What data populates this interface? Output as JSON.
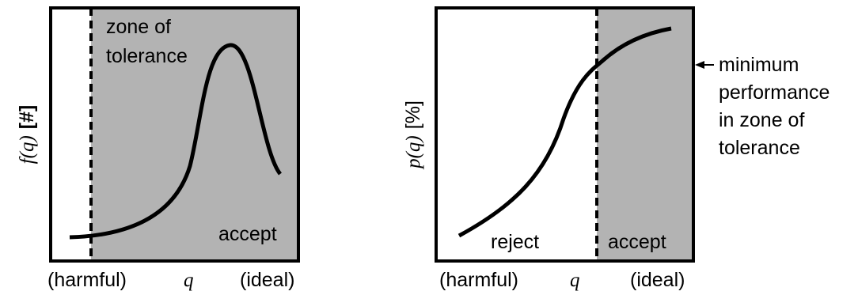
{
  "colors": {
    "zone_fill": "#b3b3b3",
    "frame": "#000000",
    "background": "#ffffff"
  },
  "left_panel": {
    "ylabel_italic": "f(q)",
    "ylabel_unit": "[#]",
    "zone_label_line1": "zone of",
    "zone_label_line2": "tolerance",
    "accept_label": "accept",
    "x_left_label": "(harmful)",
    "x_axis_symbol": "q",
    "x_right_label": "(ideal)"
  },
  "right_panel": {
    "ylabel_italic": "p(q)",
    "ylabel_unit": "[%]",
    "reject_label": "reject",
    "accept_label": "accept",
    "x_left_label": "(harmful)",
    "x_axis_symbol": "q",
    "x_right_label": "(ideal)"
  },
  "annotation": {
    "line1": "minimum",
    "line2": "performance",
    "line3": "in zone of",
    "line4": "tolerance"
  }
}
